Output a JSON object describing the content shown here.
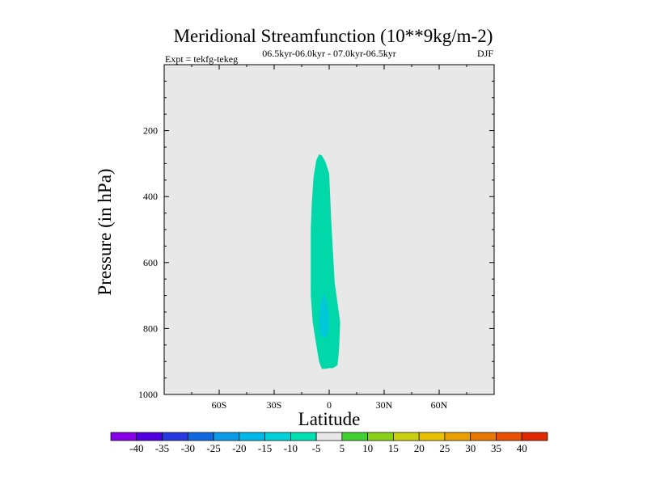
{
  "chart_data": {
    "type": "contour",
    "title": "Meridional Streamfunction (10**9kg/m-2)",
    "subtitle_left": "Expt = tekfg-tekeg",
    "subtitle_center": "06.5kyr-06.0kyr - 07.0kyr-06.5kyr",
    "subtitle_right": "DJF",
    "xlabel": "Latitude",
    "ylabel": "Pressure (in hPa)",
    "xlim": [
      -90,
      90
    ],
    "ylim": [
      1000,
      0
    ],
    "x_ticks": [
      {
        "value": -60,
        "label": "60S"
      },
      {
        "value": -30,
        "label": "30S"
      },
      {
        "value": 0,
        "label": "0"
      },
      {
        "value": 30,
        "label": "30N"
      },
      {
        "value": 60,
        "label": "60N"
      }
    ],
    "y_ticks": [
      {
        "value": 200,
        "label": "200"
      },
      {
        "value": 400,
        "label": "400"
      },
      {
        "value": 600,
        "label": "600"
      },
      {
        "value": 800,
        "label": "800"
      },
      {
        "value": 1000,
        "label": "1000"
      }
    ],
    "contours": [
      {
        "name": "region-minus5-to-minus10",
        "level_range": [
          -10,
          -5
        ],
        "color": "#00d8aa",
        "points": [
          [
            -5.5,
            272
          ],
          [
            -4,
            275
          ],
          [
            -2,
            295
          ],
          [
            0,
            330
          ],
          [
            0.5,
            390
          ],
          [
            1,
            460
          ],
          [
            2,
            560
          ],
          [
            3,
            660
          ],
          [
            5,
            740
          ],
          [
            6,
            780
          ],
          [
            5.5,
            850
          ],
          [
            5,
            890
          ],
          [
            4.5,
            912
          ],
          [
            2,
            920
          ],
          [
            0,
            920
          ],
          [
            -2,
            922
          ],
          [
            -4,
            922
          ],
          [
            -5.5,
            900
          ],
          [
            -7,
            850
          ],
          [
            -9,
            780
          ],
          [
            -10,
            700
          ],
          [
            -10,
            600
          ],
          [
            -10,
            500
          ],
          [
            -9.5,
            420
          ],
          [
            -8.5,
            340
          ],
          [
            -7,
            290
          ]
        ]
      },
      {
        "name": "region-minus10-to-minus15",
        "level_range": [
          -15,
          -10
        ],
        "color": "#00c8d8",
        "points": [
          [
            -3,
            690
          ],
          [
            -1.5,
            715
          ],
          [
            0,
            760
          ],
          [
            0,
            800
          ],
          [
            -1,
            820
          ],
          [
            -3,
            830
          ],
          [
            -5,
            815
          ],
          [
            -5.5,
            770
          ],
          [
            -4.5,
            720
          ]
        ]
      }
    ],
    "colorbar": {
      "levels": [
        "-40",
        "-35",
        "-30",
        "-25",
        "-20",
        "-15",
        "-10",
        "-5",
        "5",
        "10",
        "15",
        "20",
        "25",
        "30",
        "35",
        "40"
      ],
      "colors": [
        "#8800e8",
        "#5000e0",
        "#2838e0",
        "#1068e0",
        "#0a9ae8",
        "#00b8e8",
        "#00d0d8",
        "#00e0b0",
        "#e8e8e8",
        "#40d030",
        "#88d018",
        "#c8d010",
        "#e8c000",
        "#e8a000",
        "#e87800",
        "#e85000",
        "#e02800"
      ]
    },
    "plot_background": "#e8e8e8"
  }
}
